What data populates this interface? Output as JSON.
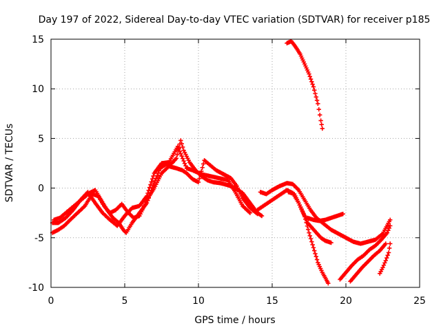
{
  "chart_data": {
    "type": "scatter",
    "title": "Day 197 of 2022, Sidereal Day-to-day VTEC variation (SDTVAR) for receiver p185",
    "xlabel": "GPS time / hours",
    "ylabel": "SDTVAR / TECUs",
    "xlim": [
      0,
      25
    ],
    "ylim": [
      -10,
      15
    ],
    "xticks": [
      0,
      5,
      10,
      15,
      20,
      25
    ],
    "yticks": [
      -10,
      -5,
      0,
      5,
      10,
      15
    ],
    "xtick_labels": [
      "0",
      "5",
      "10",
      "15",
      "20",
      "25"
    ],
    "ytick_labels": [
      "-10",
      "-5",
      "0",
      "5",
      "10",
      "15"
    ],
    "grid": true,
    "marker": "+",
    "color": "#ff0000",
    "series": [
      {
        "name": "track-1",
        "points": [
          [
            0.2,
            -3.2
          ],
          [
            0.6,
            -3.0
          ],
          [
            1.0,
            -2.5
          ],
          [
            1.4,
            -2.0
          ],
          [
            1.8,
            -1.5
          ],
          [
            2.2,
            -1.0
          ],
          [
            2.6,
            -0.5
          ],
          [
            3.0,
            -0.2
          ],
          [
            3.4,
            -1.2
          ],
          [
            3.8,
            -2.2
          ],
          [
            4.2,
            -3.0
          ],
          [
            4.6,
            -3.5
          ],
          [
            4.9,
            -4.2
          ],
          [
            5.1,
            -4.5
          ],
          [
            5.5,
            -3.5
          ],
          [
            6.0,
            -2.5
          ],
          [
            6.5,
            -1.5
          ],
          [
            7.0,
            0.5
          ],
          [
            7.4,
            2.0
          ],
          [
            7.8,
            2.4
          ],
          [
            8.2,
            2.5
          ],
          [
            8.5,
            3.0
          ],
          [
            8.8,
            4.8
          ],
          [
            9.0,
            3.8
          ],
          [
            9.4,
            2.6
          ],
          [
            9.8,
            1.8
          ],
          [
            10.2,
            1.2
          ],
          [
            10.6,
            0.8
          ],
          [
            11.0,
            0.6
          ],
          [
            11.5,
            0.5
          ],
          [
            12.0,
            0.3
          ],
          [
            12.5,
            0.0
          ],
          [
            13.0,
            -0.5
          ],
          [
            13.5,
            -1.5
          ],
          [
            14.0,
            -2.5
          ],
          [
            14.3,
            -2.8
          ]
        ]
      },
      {
        "name": "track-2",
        "points": [
          [
            0.1,
            -4.5
          ],
          [
            0.5,
            -4.2
          ],
          [
            0.9,
            -3.8
          ],
          [
            1.3,
            -3.2
          ],
          [
            1.8,
            -2.5
          ],
          [
            2.3,
            -1.8
          ],
          [
            2.8,
            -0.6
          ],
          [
            3.2,
            -0.8
          ],
          [
            3.6,
            -1.8
          ],
          [
            4.0,
            -2.5
          ],
          [
            4.4,
            -2.2
          ],
          [
            4.8,
            -1.6
          ],
          [
            5.2,
            -2.4
          ],
          [
            5.6,
            -3.0
          ],
          [
            6.0,
            -2.8
          ],
          [
            6.5,
            -1.2
          ],
          [
            7.0,
            0.0
          ],
          [
            7.5,
            1.5
          ],
          [
            8.0,
            2.2
          ],
          [
            8.5,
            2.0
          ],
          [
            8.9,
            1.8
          ],
          [
            9.2,
            1.5
          ],
          [
            9.6,
            0.9
          ],
          [
            10.0,
            0.6
          ],
          [
            10.4,
            2.8
          ],
          [
            10.8,
            2.3
          ],
          [
            11.2,
            1.8
          ],
          [
            11.7,
            1.4
          ],
          [
            12.2,
            1.0
          ],
          [
            12.6,
            0.2
          ],
          [
            13.0,
            -1.0
          ],
          [
            13.5,
            -2.0
          ],
          [
            14.0,
            -2.6
          ]
        ]
      },
      {
        "name": "track-3",
        "points": [
          [
            0.1,
            -3.5
          ],
          [
            0.5,
            -3.5
          ],
          [
            1.0,
            -3.0
          ],
          [
            1.5,
            -2.2
          ],
          [
            2.0,
            -1.2
          ],
          [
            2.5,
            -0.4
          ],
          [
            3.0,
            -1.5
          ],
          [
            3.5,
            -2.5
          ],
          [
            4.0,
            -3.2
          ],
          [
            4.5,
            -3.8
          ],
          [
            5.0,
            -2.8
          ],
          [
            5.5,
            -2.0
          ],
          [
            6.0,
            -1.8
          ],
          [
            6.5,
            -0.8
          ],
          [
            7.0,
            1.5
          ],
          [
            7.5,
            2.5
          ],
          [
            8.0,
            2.6
          ],
          [
            8.6,
            4.2
          ],
          [
            9.2,
            2.0
          ],
          [
            9.6,
            1.8
          ],
          [
            10.2,
            1.4
          ],
          [
            10.8,
            1.2
          ],
          [
            11.4,
            1.0
          ],
          [
            12.0,
            0.8
          ],
          [
            12.5,
            -0.4
          ],
          [
            13.0,
            -1.8
          ],
          [
            13.5,
            -2.5
          ]
        ]
      },
      {
        "name": "track-4",
        "points": [
          [
            14.0,
            -2.2
          ],
          [
            14.4,
            -1.8
          ],
          [
            14.8,
            -1.4
          ],
          [
            15.2,
            -1.0
          ],
          [
            15.6,
            -0.6
          ],
          [
            16.0,
            -0.2
          ],
          [
            16.4,
            -0.5
          ],
          [
            16.8,
            -1.5
          ],
          [
            17.2,
            -2.8
          ],
          [
            17.5,
            -4.5
          ],
          [
            17.8,
            -6.0
          ],
          [
            18.1,
            -7.5
          ],
          [
            18.4,
            -8.5
          ],
          [
            18.7,
            -9.3
          ],
          [
            18.8,
            -9.6
          ]
        ]
      },
      {
        "name": "track-5",
        "points": [
          [
            14.2,
            -0.4
          ],
          [
            14.6,
            -0.6
          ],
          [
            15.0,
            -0.2
          ],
          [
            15.5,
            0.2
          ],
          [
            16.0,
            0.5
          ],
          [
            16.4,
            0.4
          ],
          [
            16.8,
            -0.2
          ],
          [
            17.2,
            -1.2
          ],
          [
            17.6,
            -2.2
          ],
          [
            18.0,
            -3.0
          ],
          [
            18.5,
            -3.6
          ],
          [
            19.0,
            -4.2
          ],
          [
            19.5,
            -4.6
          ],
          [
            20.0,
            -5.0
          ],
          [
            20.5,
            -5.4
          ],
          [
            21.0,
            -5.6
          ],
          [
            21.5,
            -5.4
          ],
          [
            22.0,
            -5.2
          ],
          [
            22.5,
            -4.6
          ],
          [
            23.0,
            -3.2
          ]
        ]
      },
      {
        "name": "track-6",
        "points": [
          [
            16.1,
            -0.4
          ],
          [
            16.5,
            -0.6
          ],
          [
            16.8,
            -1.5
          ],
          [
            17.1,
            -2.5
          ],
          [
            17.4,
            -3.5
          ],
          [
            17.7,
            -4.0
          ],
          [
            18.0,
            -4.5
          ],
          [
            18.3,
            -5.0
          ],
          [
            18.6,
            -5.3
          ],
          [
            19.0,
            -5.5
          ]
        ]
      },
      {
        "name": "track-7",
        "points": [
          [
            17.4,
            -3.0
          ],
          [
            17.8,
            -3.2
          ],
          [
            18.2,
            -3.3
          ],
          [
            18.6,
            -3.2
          ],
          [
            19.0,
            -3.0
          ],
          [
            19.4,
            -2.8
          ],
          [
            19.8,
            -2.6
          ]
        ]
      },
      {
        "name": "track-8",
        "points": [
          [
            19.6,
            -9.2
          ],
          [
            20.0,
            -8.5
          ],
          [
            20.4,
            -7.8
          ],
          [
            20.8,
            -7.2
          ],
          [
            21.2,
            -6.8
          ],
          [
            21.6,
            -6.2
          ],
          [
            22.0,
            -5.8
          ],
          [
            22.4,
            -5.2
          ],
          [
            22.8,
            -4.5
          ],
          [
            23.0,
            -3.8
          ]
        ]
      },
      {
        "name": "track-9",
        "points": [
          [
            20.3,
            -9.4
          ],
          [
            20.7,
            -8.7
          ],
          [
            21.1,
            -8.0
          ],
          [
            21.5,
            -7.4
          ],
          [
            21.9,
            -6.8
          ],
          [
            22.3,
            -6.3
          ],
          [
            22.7,
            -5.6
          ]
        ]
      },
      {
        "name": "track-10",
        "points": [
          [
            22.3,
            -8.6
          ],
          [
            22.5,
            -8.0
          ],
          [
            22.7,
            -7.3
          ],
          [
            22.9,
            -6.5
          ],
          [
            23.0,
            -5.6
          ]
        ]
      },
      {
        "name": "track-11",
        "points": [
          [
            16.0,
            14.6
          ],
          [
            16.3,
            14.8
          ],
          [
            16.6,
            14.2
          ],
          [
            16.9,
            13.5
          ],
          [
            17.2,
            12.5
          ],
          [
            17.5,
            11.5
          ],
          [
            17.8,
            10.2
          ],
          [
            18.1,
            8.5
          ],
          [
            18.3,
            6.8
          ],
          [
            18.4,
            6.0
          ]
        ]
      }
    ]
  }
}
